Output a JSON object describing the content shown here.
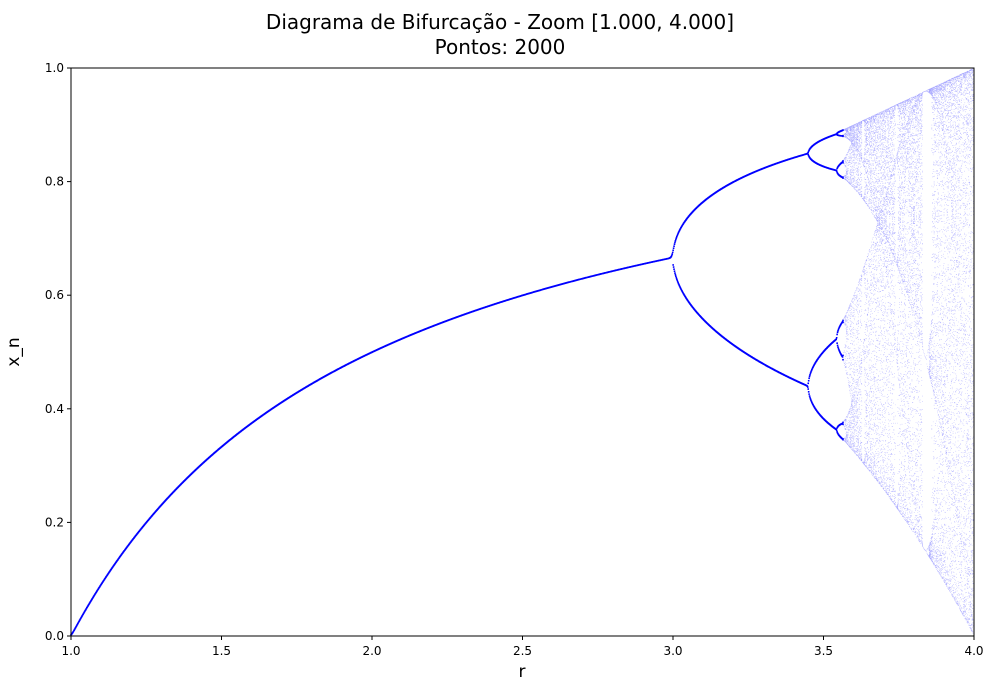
{
  "chart_data": {
    "type": "scatter",
    "title": "Diagrama de Bifurcação - Zoom [1.000, 4.000]",
    "subtitle": "Pontos: 2000",
    "xlabel": "r",
    "ylabel": "x_n",
    "xlim": [
      1.0,
      4.0
    ],
    "ylim": [
      0.0,
      1.0
    ],
    "x_ticks": [
      1.0,
      1.5,
      2.0,
      2.5,
      3.0,
      3.5,
      4.0
    ],
    "x_tick_labels": [
      "1.0",
      "1.5",
      "2.0",
      "2.5",
      "3.0",
      "3.5",
      "4.0"
    ],
    "y_ticks": [
      0.0,
      0.2,
      0.4,
      0.6,
      0.8,
      1.0
    ],
    "y_tick_labels": [
      "0.0",
      "0.2",
      "0.4",
      "0.6",
      "0.8",
      "1.0"
    ],
    "grid": false,
    "legend": "none",
    "map": "logistic x_{n+1} = r x_n (1 - x_n)",
    "r_points": 2000,
    "color": "#0000ff",
    "branch_samples": [
      {
        "r": 1.0,
        "x": [
          0.0
        ]
      },
      {
        "r": 1.5,
        "x": [
          0.333
        ]
      },
      {
        "r": 2.0,
        "x": [
          0.5
        ]
      },
      {
        "r": 2.5,
        "x": [
          0.6
        ]
      },
      {
        "r": 3.0,
        "x": [
          0.667
        ]
      },
      {
        "r": 3.2,
        "x": [
          0.513,
          0.799
        ]
      },
      {
        "r": 3.449,
        "x": [
          0.44,
          0.852
        ]
      },
      {
        "r": 3.5,
        "x": [
          0.383,
          0.501,
          0.827,
          0.875
        ]
      },
      {
        "r": 3.57,
        "x": [
          0.34,
          0.892
        ]
      },
      {
        "r": 3.83,
        "x": [
          0.156,
          0.505,
          0.957
        ]
      },
      {
        "r": 4.0,
        "x": [
          0.0,
          1.0
        ]
      }
    ]
  }
}
